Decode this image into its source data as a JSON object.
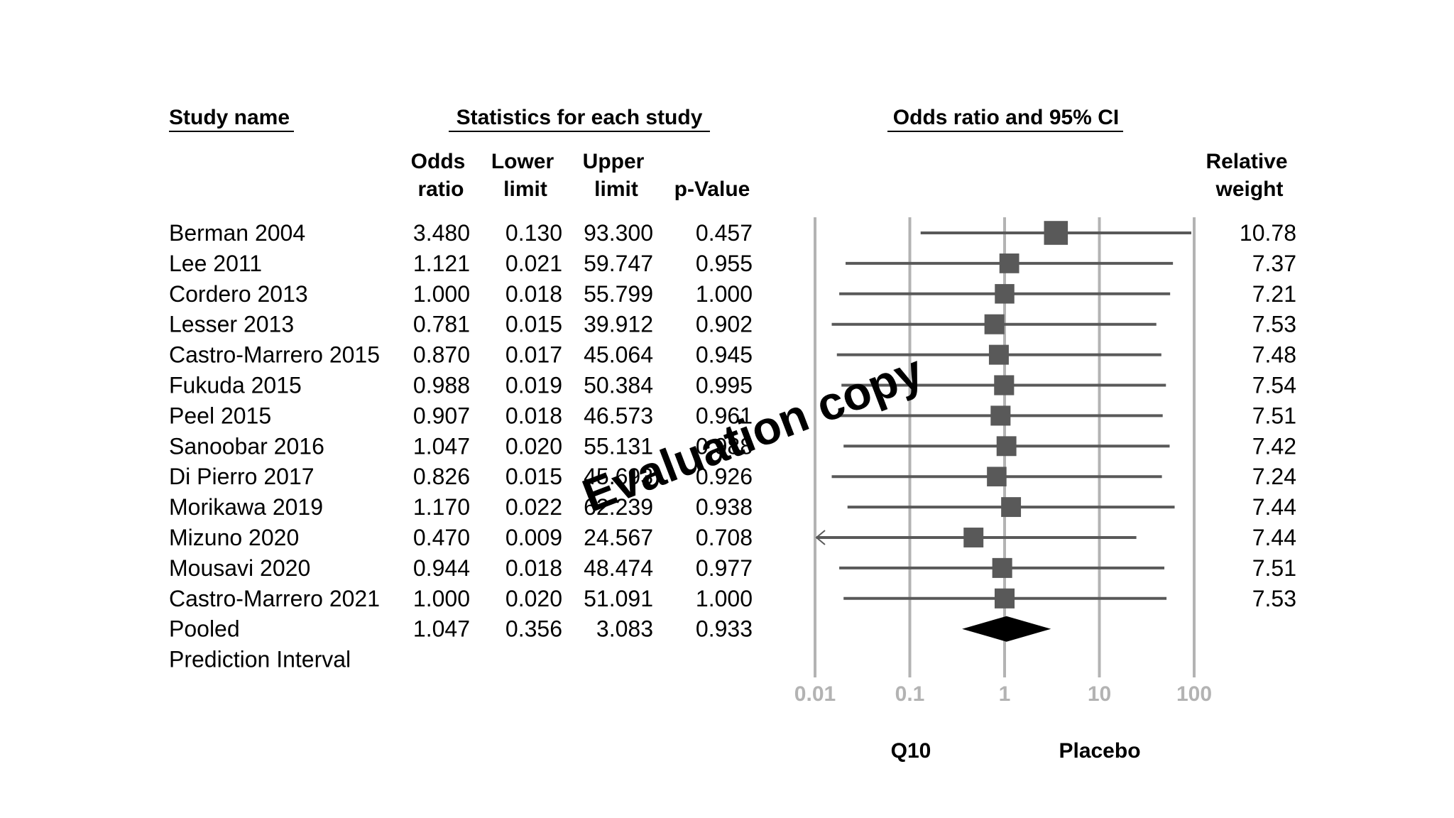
{
  "chart_data": {
    "type": "forest",
    "headers": {
      "study_name": "Study name",
      "statistics": "Statistics for each study",
      "plot": "Odds ratio and 95% CI",
      "odds_ratio": [
        "Odds",
        "ratio"
      ],
      "lower_limit": [
        "Lower",
        "limit"
      ],
      "upper_limit": [
        "Upper",
        "limit"
      ],
      "p_value": "p-Value",
      "relative_weight": [
        "Relative",
        "weight"
      ]
    },
    "studies": [
      {
        "name": "Berman 2004",
        "or": "3.480",
        "lower": "0.130",
        "upper": "93.300",
        "p": "0.457",
        "weight": "10.78"
      },
      {
        "name": "Lee 2011",
        "or": "1.121",
        "lower": "0.021",
        "upper": "59.747",
        "p": "0.955",
        "weight": "7.37"
      },
      {
        "name": "Cordero 2013",
        "or": "1.000",
        "lower": "0.018",
        "upper": "55.799",
        "p": "1.000",
        "weight": "7.21"
      },
      {
        "name": "Lesser 2013",
        "or": "0.781",
        "lower": "0.015",
        "upper": "39.912",
        "p": "0.902",
        "weight": "7.53"
      },
      {
        "name": "Castro-Marrero 2015",
        "or": "0.870",
        "lower": "0.017",
        "upper": "45.064",
        "p": "0.945",
        "weight": "7.48"
      },
      {
        "name": "Fukuda 2015",
        "or": "0.988",
        "lower": "0.019",
        "upper": "50.384",
        "p": "0.995",
        "weight": "7.54"
      },
      {
        "name": "Peel 2015",
        "or": "0.907",
        "lower": "0.018",
        "upper": "46.573",
        "p": "0.961",
        "weight": "7.51"
      },
      {
        "name": "Sanoobar 2016",
        "or": "1.047",
        "lower": "0.020",
        "upper": "55.131",
        "p": "0.988",
        "weight": "7.42"
      },
      {
        "name": "Di Pierro 2017",
        "or": "0.826",
        "lower": "0.015",
        "upper": "45.693",
        "p": "0.926",
        "weight": "7.24"
      },
      {
        "name": "Morikawa 2019",
        "or": "1.170",
        "lower": "0.022",
        "upper": "62.239",
        "p": "0.938",
        "weight": "7.44"
      },
      {
        "name": "Mizuno 2020",
        "or": "0.470",
        "lower": "0.009",
        "upper": "24.567",
        "p": "0.708",
        "weight": "7.44"
      },
      {
        "name": "Mousavi 2020",
        "or": "0.944",
        "lower": "0.018",
        "upper": "48.474",
        "p": "0.977",
        "weight": "7.51"
      },
      {
        "name": "Castro-Marrero 2021",
        "or": "1.000",
        "lower": "0.020",
        "upper": "51.091",
        "p": "1.000",
        "weight": "7.53"
      }
    ],
    "pooled": {
      "name": "Pooled",
      "or": "1.047",
      "lower": "0.356",
      "upper": "3.083",
      "p": "0.933"
    },
    "prediction_interval": {
      "name": "Prediction Interval"
    },
    "x_scale": "log",
    "xlim": [
      0.01,
      100
    ],
    "x_ticks": [
      "0.01",
      "0.1",
      "1",
      "10",
      "100"
    ],
    "favors_left": "Q10",
    "favors_right": "Placebo"
  },
  "watermark": "Evaluation copy",
  "colors": {
    "marker": "#595959",
    "line": "#595959",
    "grid": "#b3b3b3",
    "diamond": "#000000"
  }
}
